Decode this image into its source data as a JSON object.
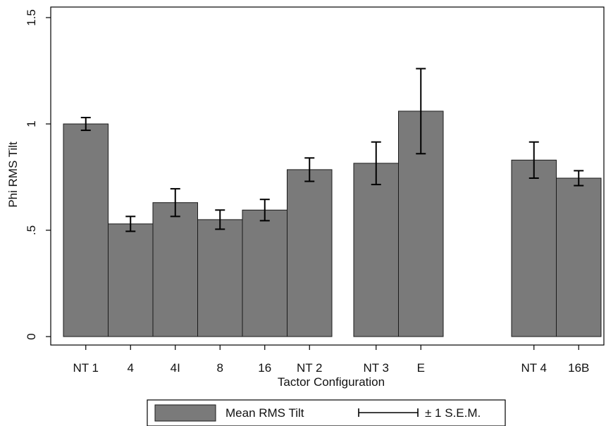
{
  "chart_data": {
    "type": "bar",
    "title": "",
    "xlabel": "Tactor Configuration",
    "ylabel": "Phi RMS Tilt",
    "ylim": [
      0,
      1.5
    ],
    "y_ticks": [
      {
        "value": 0,
        "label": "0"
      },
      {
        "value": 0.5,
        "label": ".5"
      },
      {
        "value": 1,
        "label": "1"
      },
      {
        "value": 1.5,
        "label": "1.5"
      }
    ],
    "groups": [
      {
        "categories": [
          "NT 1",
          "4",
          "4I",
          "8",
          "16",
          "NT 2"
        ]
      },
      {
        "categories": [
          "NT 3",
          "E"
        ]
      },
      {
        "categories": [
          "NT 4",
          "16B"
        ]
      }
    ],
    "categories": [
      "NT 1",
      "4",
      "4I",
      "8",
      "16",
      "NT 2",
      "NT 3",
      "E",
      "NT 4",
      "16B"
    ],
    "series": [
      {
        "name": "Mean RMS Tilt",
        "values": [
          1.0,
          0.53,
          0.63,
          0.55,
          0.595,
          0.785,
          0.815,
          1.06,
          0.83,
          0.745
        ],
        "sem": [
          0.03,
          0.035,
          0.065,
          0.045,
          0.05,
          0.055,
          0.1,
          0.2,
          0.085,
          0.035
        ]
      }
    ],
    "legend": {
      "placement": "bottom",
      "bar_label": "Mean RMS Tilt",
      "errorbar_label": "± 1 S.E.M."
    },
    "grid": false,
    "colors": {
      "bar_fill": "#7a7a7a",
      "bar_stroke": "#1a1a1a",
      "error_bar": "#000000",
      "axis": "#000000"
    }
  }
}
